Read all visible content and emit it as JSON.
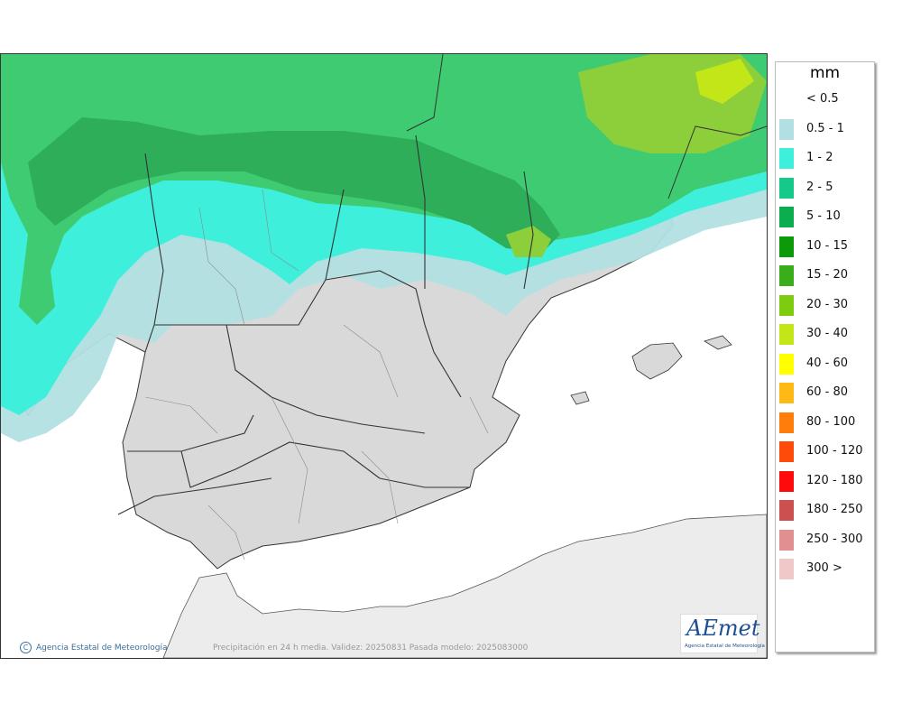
{
  "legend": {
    "title": "mm",
    "items": [
      {
        "label": "< 0.5",
        "color": "#ffffff"
      },
      {
        "label": "0.5 - 1",
        "color": "#b2e0e2"
      },
      {
        "label": "1 - 2",
        "color": "#3ef0dc"
      },
      {
        "label": "2 - 5",
        "color": "#14c98a"
      },
      {
        "label": "5 - 10",
        "color": "#0aae4e"
      },
      {
        "label": "10 - 15",
        "color": "#0a9a0a"
      },
      {
        "label": "15 - 20",
        "color": "#3aae1a"
      },
      {
        "label": "20 - 30",
        "color": "#7dcc10"
      },
      {
        "label": "30 - 40",
        "color": "#c3e619"
      },
      {
        "label": "40 - 60",
        "color": "#ffff00"
      },
      {
        "label": "60 - 80",
        "color": "#ffb914"
      },
      {
        "label": "80 - 100",
        "color": "#ff7d0a"
      },
      {
        "label": "100 - 120",
        "color": "#ff4b0a"
      },
      {
        "label": "120 - 180",
        "color": "#ff0a0a"
      },
      {
        "label": "180 - 250",
        "color": "#cc5050"
      },
      {
        "label": "250 - 300",
        "color": "#e09090"
      },
      {
        "label": "300 >",
        "color": "#f0c8c8"
      }
    ]
  },
  "credit": {
    "symbol": "C",
    "text": "Agencia Estatal de Meteorología"
  },
  "footer": {
    "text": "Precipitación en 24 h media. Validez: 20250831 Pasada modelo: 2025083000"
  },
  "logo": {
    "word": "AEmet",
    "sub": "Agencia Estatal de Meteorología"
  }
}
